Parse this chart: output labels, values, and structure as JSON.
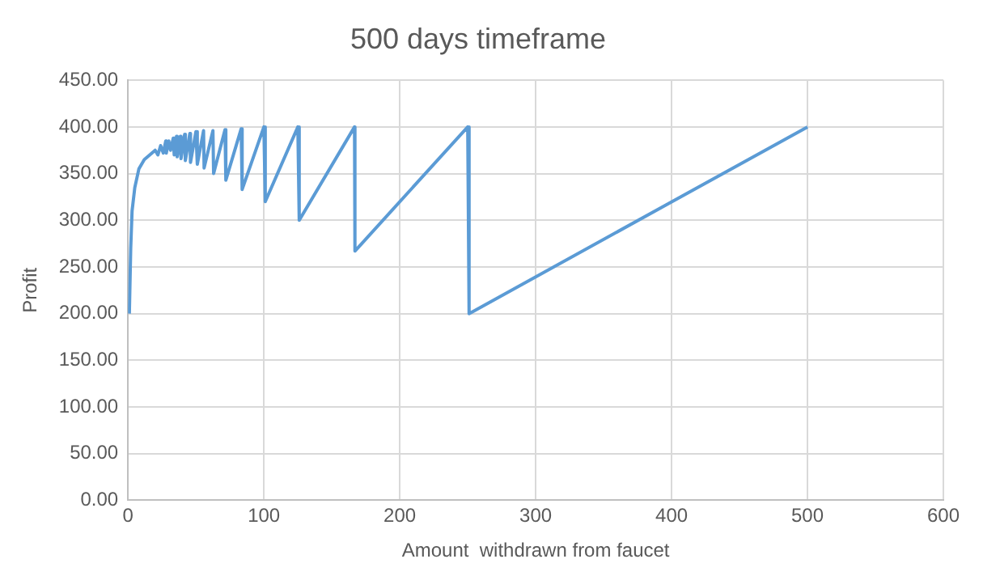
{
  "chart_data": {
    "type": "line",
    "title": "500 days timeframe",
    "xlabel": "Amount  withdrawn from faucet",
    "ylabel": "Profit",
    "x": [
      1,
      2,
      3,
      5,
      8,
      12,
      16,
      20,
      22,
      24,
      26,
      27.8,
      28.2,
      30,
      31.3,
      33.3,
      34,
      35.7,
      36.2,
      38.5,
      39,
      41.7,
      42.2,
      45.5,
      46,
      50,
      51,
      55.6,
      56,
      62.5,
      63,
      71.4,
      72,
      83.3,
      84,
      100,
      101,
      125,
      126,
      166.7,
      167,
      250,
      251,
      500
    ],
    "series": [
      {
        "color": "#5b9bd5",
        "values": [
          200,
          270,
          310,
          335,
          355,
          365,
          370,
          375,
          370,
          380,
          372,
          385,
          372,
          385,
          375,
          388,
          370,
          390,
          368,
          390,
          366,
          392,
          364,
          393,
          362,
          395,
          360,
          396,
          356,
          396,
          350,
          397,
          343,
          398,
          333,
          400,
          320,
          400,
          300,
          400,
          267,
          400,
          200,
          400
        ]
      }
    ],
    "xlim": [
      0,
      600
    ],
    "xticks": [
      0,
      100,
      200,
      300,
      400,
      500,
      600
    ],
    "ylim": [
      0,
      450
    ],
    "yticks": [
      {
        "value": 0,
        "label": "0.00"
      },
      {
        "value": 50,
        "label": "50.00"
      },
      {
        "value": 100,
        "label": "100.00"
      },
      {
        "value": 150,
        "label": "150.00"
      },
      {
        "value": 200,
        "label": "200.00"
      },
      {
        "value": 250,
        "label": "250.00"
      },
      {
        "value": 300,
        "label": "300.00"
      },
      {
        "value": 350,
        "label": "350.00"
      },
      {
        "value": 400,
        "label": "400.00"
      },
      {
        "value": 450,
        "label": "450.00"
      }
    ],
    "grid": true,
    "marker": "none"
  }
}
